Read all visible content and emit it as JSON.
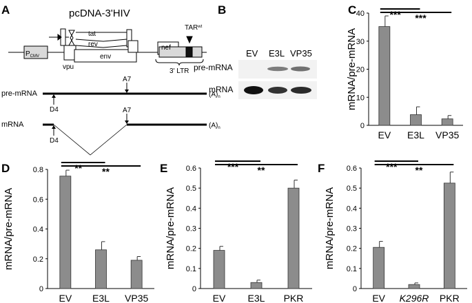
{
  "panels": {
    "A": {
      "label": "A",
      "construct_title": "pcDNA-3'HIV",
      "pcmv_main": "P",
      "pcmv_sub": "CMV",
      "tat": "tat",
      "rev": "rev",
      "env": "env",
      "vpu": "vpu",
      "nef": "nef",
      "tar_main": "TAR",
      "tar_sup": "wt",
      "ltr": "3' LTR",
      "pre_label": "pre-mRNA",
      "mrna_label": "mRNA",
      "d4": "D4",
      "a7": "A7",
      "polya_main": "(A)",
      "polya_sub": "n"
    },
    "B": {
      "label": "B",
      "lanes": [
        "EV",
        "E3L",
        "VP35"
      ],
      "rows": [
        "pre-mRNA",
        "mRNA"
      ]
    }
  },
  "chart_data": [
    {
      "panel": "C",
      "type": "bar",
      "categories": [
        "EV",
        "E3L",
        "VP35"
      ],
      "values": [
        35.2,
        3.8,
        2.3
      ],
      "errors": [
        3.8,
        2.8,
        1.2
      ],
      "ylabel": "mRNA/pre-mRNA",
      "ylim": [
        0,
        40
      ],
      "yticks": [
        "0",
        "10",
        "20",
        "30",
        "40"
      ],
      "significance": [
        {
          "from": 0,
          "to": 1,
          "label": "***"
        },
        {
          "from": 0,
          "to": 2,
          "label": "***"
        }
      ]
    },
    {
      "panel": "D",
      "type": "bar",
      "categories": [
        "EV",
        "E3L",
        "VP35"
      ],
      "values": [
        0.755,
        0.26,
        0.19
      ],
      "errors": [
        0.04,
        0.055,
        0.025
      ],
      "ylabel": "mRNA/pre-mRNA",
      "ylim": [
        0,
        0.8
      ],
      "yticks": [
        "0",
        "0.2",
        "0.4",
        "0.6",
        "0.8"
      ],
      "significance": [
        {
          "from": 0,
          "to": 1,
          "label": "**"
        },
        {
          "from": 0,
          "to": 2,
          "label": "**"
        }
      ]
    },
    {
      "panel": "E",
      "type": "bar",
      "categories": [
        "EV",
        "E3L",
        "PKR"
      ],
      "values": [
        0.19,
        0.03,
        0.5
      ],
      "errors": [
        0.02,
        0.012,
        0.04
      ],
      "ylabel": "mRNA/pre-mRNA",
      "ylim": [
        0,
        0.6
      ],
      "yticks": [
        "0",
        "0.1",
        "0.2",
        "0.3",
        "0.4",
        "0.5",
        "0.6"
      ],
      "significance": [
        {
          "from": 0,
          "to": 1,
          "label": "***"
        },
        {
          "from": 0,
          "to": 2,
          "label": "**"
        }
      ]
    },
    {
      "panel": "F",
      "type": "bar",
      "categories": [
        "EV",
        "K296R",
        "PKR"
      ],
      "italic_categories": [
        "K296R"
      ],
      "values": [
        0.205,
        0.02,
        0.525
      ],
      "errors": [
        0.03,
        0.008,
        0.055
      ],
      "ylabel": "mRNA/pre-mRNA",
      "ylim": [
        0,
        0.6
      ],
      "yticks": [
        "0",
        "0.1",
        "0.2",
        "0.3",
        "0.4",
        "0.5",
        "0.6"
      ],
      "significance": [
        {
          "from": 0,
          "to": 1,
          "label": "***"
        },
        {
          "from": 0,
          "to": 2,
          "label": "**"
        }
      ]
    }
  ],
  "style": {
    "bar_color": "#8c8c8c",
    "bar_stroke": "#333333",
    "gel_band": "#111111",
    "gel_bg": "#f2f2f2"
  }
}
